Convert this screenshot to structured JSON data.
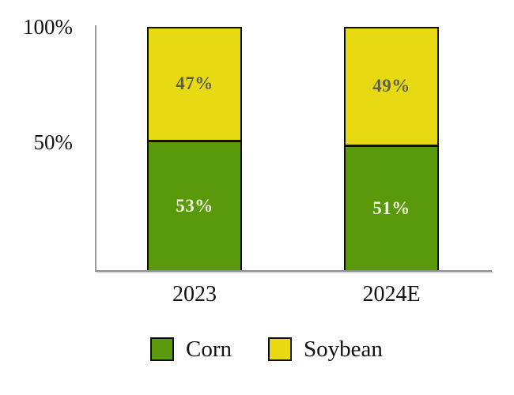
{
  "chart_data": {
    "type": "bar",
    "stacked": true,
    "categories": [
      "2023",
      "2024E"
    ],
    "series": [
      {
        "name": "Corn",
        "values": [
          53,
          51
        ],
        "labels": [
          "53%",
          "51%"
        ],
        "color": "#5a9a0a",
        "label_color": "#eef3e0"
      },
      {
        "name": "Soybean",
        "values": [
          47,
          49
        ],
        "labels": [
          "47%",
          "49%"
        ],
        "color": "#e8da12",
        "label_color": "#60604c"
      }
    ],
    "yticks": [
      "100%",
      "50%"
    ],
    "ylim": [
      0,
      100
    ],
    "xlabel": "",
    "ylabel": "",
    "title": "",
    "grid": false,
    "legend_position": "bottom",
    "axis_color": "#9b9b9b",
    "bar_border_color": "#0d0d0d"
  }
}
